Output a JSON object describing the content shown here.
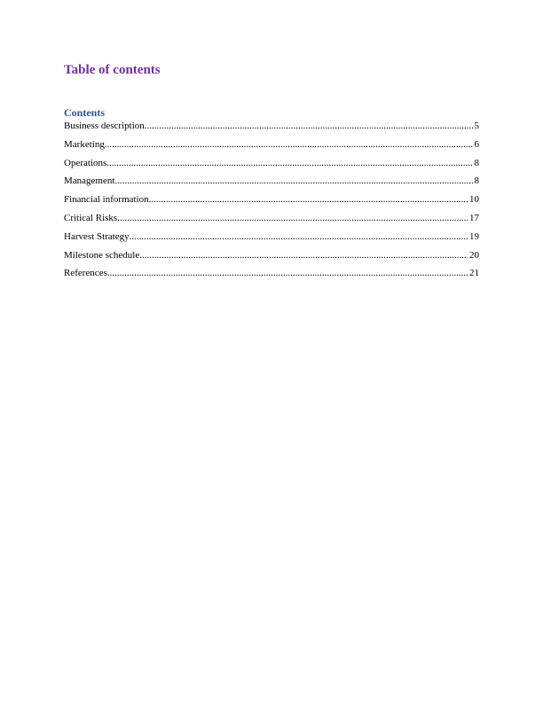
{
  "heading": "Table of contents",
  "toc_title": "Contents",
  "colors": {
    "heading": "#7030a0",
    "toc_title": "#2f5496"
  },
  "entries": [
    {
      "label": "Business description",
      "page": "5"
    },
    {
      "label": "Marketing",
      "page": "6"
    },
    {
      "label": "Operations",
      "page": "8"
    },
    {
      "label": "Management",
      "page": "8"
    },
    {
      "label": "Financial information",
      "page": "10"
    },
    {
      "label": "Critical Risks",
      "page": "17"
    },
    {
      "label": "Harvest Strategy",
      "page": "19"
    },
    {
      "label": "Milestone schedule",
      "page": "20"
    },
    {
      "label": "References",
      "page": "21"
    }
  ]
}
